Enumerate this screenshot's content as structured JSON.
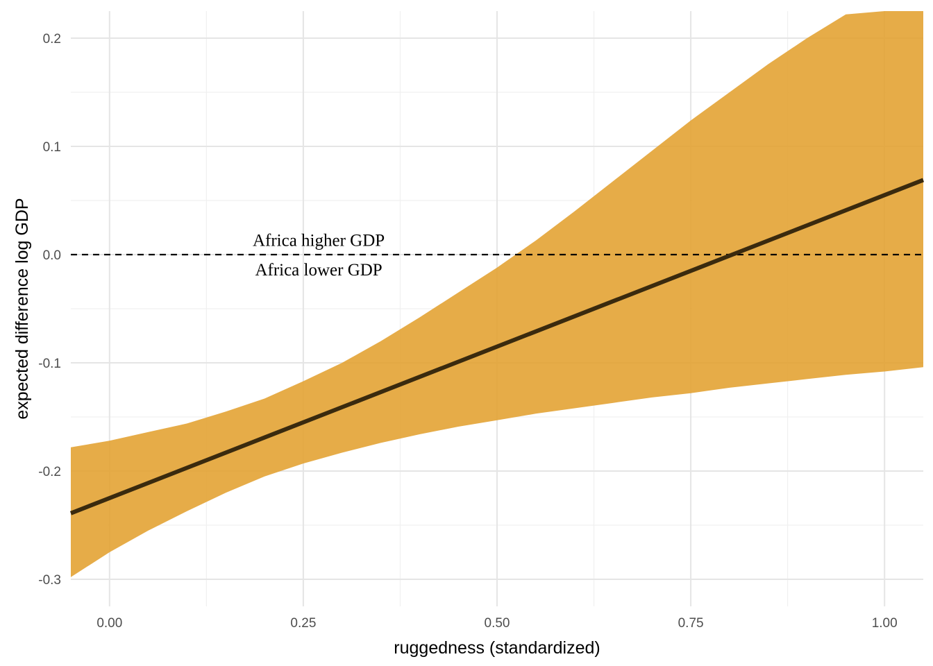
{
  "chart_data": {
    "type": "area",
    "title": "",
    "xlabel": "ruggedness (standardized)",
    "ylabel": "expected difference log GDP",
    "xlim": [
      -0.05,
      1.05
    ],
    "ylim": [
      -0.325,
      0.225
    ],
    "grid": true,
    "x_ticks": [
      0.0,
      0.25,
      0.5,
      0.75,
      1.0
    ],
    "x_tick_labels": [
      "0.00",
      "0.25",
      "0.50",
      "0.75",
      "1.00"
    ],
    "y_ticks": [
      -0.3,
      -0.2,
      -0.1,
      0.0,
      0.1,
      0.2
    ],
    "y_tick_labels": [
      "-0.3",
      "-0.2",
      "-0.1",
      "0.0",
      "0.1",
      "0.2"
    ],
    "colors": {
      "band": "#e2a02f",
      "line": "#3a2a0e",
      "reference": "#000000"
    },
    "band": {
      "x": [
        -0.05,
        0.0,
        0.05,
        0.1,
        0.15,
        0.2,
        0.25,
        0.3,
        0.35,
        0.4,
        0.45,
        0.5,
        0.55,
        0.6,
        0.65,
        0.7,
        0.75,
        0.8,
        0.85,
        0.9,
        0.95,
        1.0,
        1.05
      ],
      "upper": [
        -0.178,
        -0.172,
        -0.164,
        -0.156,
        -0.145,
        -0.133,
        -0.117,
        -0.1,
        -0.08,
        -0.058,
        -0.035,
        -0.012,
        0.013,
        0.04,
        0.068,
        0.096,
        0.124,
        0.15,
        0.176,
        0.2,
        0.222,
        0.225,
        0.225
      ],
      "lower": [
        -0.298,
        -0.275,
        -0.255,
        -0.237,
        -0.22,
        -0.205,
        -0.193,
        -0.183,
        -0.174,
        -0.166,
        -0.159,
        -0.153,
        -0.147,
        -0.142,
        -0.137,
        -0.132,
        -0.128,
        -0.123,
        -0.119,
        -0.115,
        -0.111,
        -0.108,
        -0.104
      ]
    },
    "mean_line": {
      "x": [
        -0.05,
        1.05
      ],
      "y": [
        -0.239,
        0.069
      ]
    },
    "reference_line": {
      "y": 0.0,
      "style": "dashed"
    },
    "annotations": [
      {
        "text": "Africa higher GDP",
        "x": 0.2,
        "y": 0.013
      },
      {
        "text": "Africa lower GDP",
        "x": 0.2,
        "y": -0.014
      }
    ]
  }
}
